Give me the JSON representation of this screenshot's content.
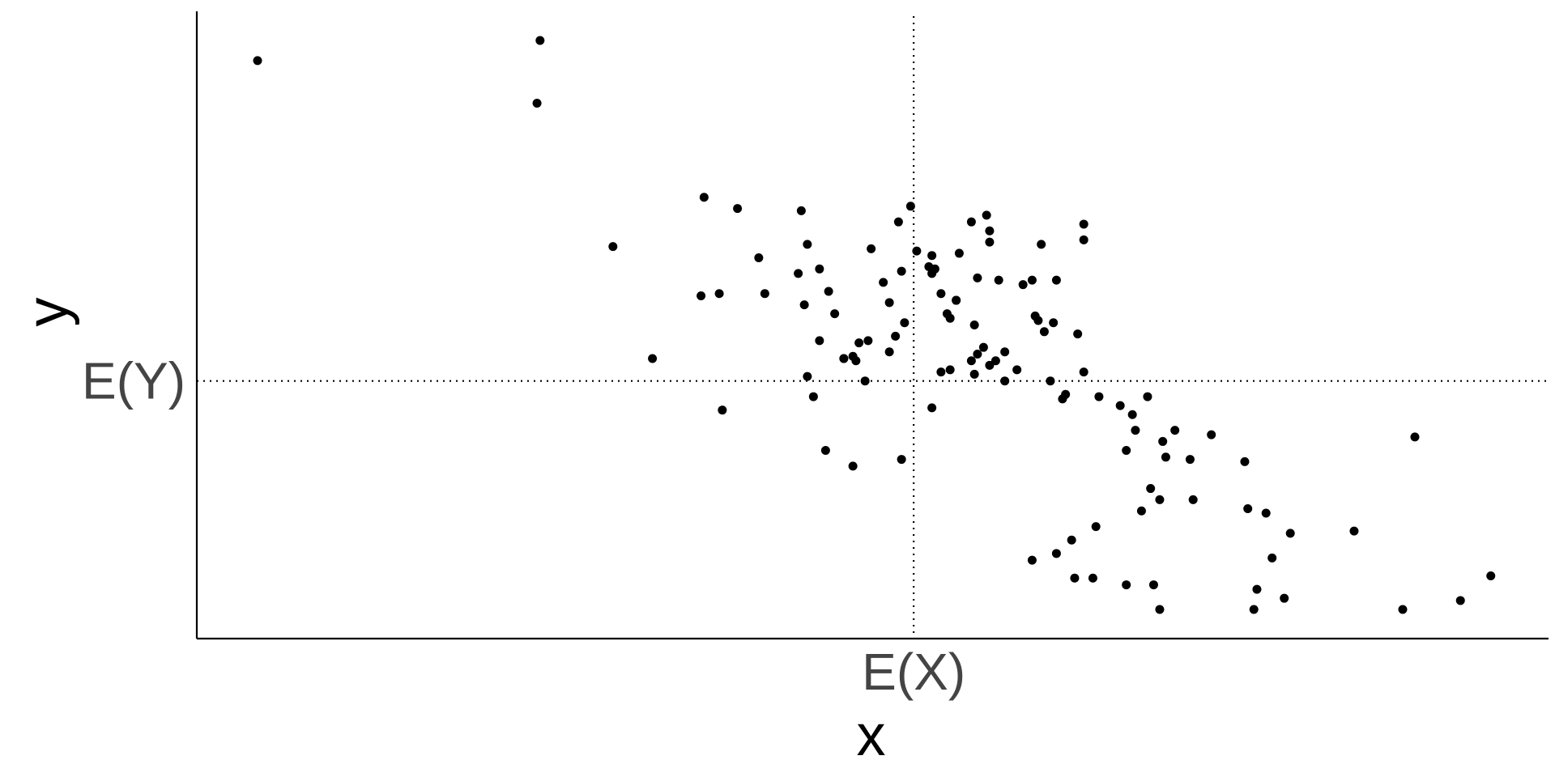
{
  "chart_data": {
    "type": "scatter",
    "xlabel": "x",
    "ylabel": "y",
    "x_ticks": [
      {
        "value": 0,
        "label": "E(X)"
      }
    ],
    "y_ticks": [
      {
        "value": 0,
        "label": "E(Y)"
      }
    ],
    "xlim": [
      -2.36,
      2.09
    ],
    "ylim": [
      -1.15,
      1.65
    ],
    "reference_lines": {
      "x": 0,
      "y": 0,
      "style": "dotted"
    },
    "grid": false,
    "points": [
      {
        "x": -2.16,
        "y": 1.43
      },
      {
        "x": -1.23,
        "y": 1.52
      },
      {
        "x": -1.24,
        "y": 1.24
      },
      {
        "x": -0.99,
        "y": 0.6
      },
      {
        "x": -0.7,
        "y": 0.38
      },
      {
        "x": -0.36,
        "y": 0.34
      },
      {
        "x": -0.64,
        "y": 0.39
      },
      {
        "x": -0.86,
        "y": 0.1
      },
      {
        "x": -0.58,
        "y": 0.77
      },
      {
        "x": -0.69,
        "y": 0.82
      },
      {
        "x": -0.51,
        "y": 0.55
      },
      {
        "x": -0.49,
        "y": 0.39
      },
      {
        "x": -0.37,
        "y": 0.76
      },
      {
        "x": -0.38,
        "y": 0.48
      },
      {
        "x": -0.35,
        "y": 0.61
      },
      {
        "x": -0.31,
        "y": 0.5
      },
      {
        "x": -0.28,
        "y": 0.4
      },
      {
        "x": -0.26,
        "y": 0.3
      },
      {
        "x": -0.23,
        "y": 0.1
      },
      {
        "x": -0.15,
        "y": 0.18
      },
      {
        "x": -0.08,
        "y": 0.13
      },
      {
        "x": -0.1,
        "y": 0.44
      },
      {
        "x": -0.04,
        "y": 0.49
      },
      {
        "x": -0.08,
        "y": 0.35
      },
      {
        "x": -0.05,
        "y": 0.71
      },
      {
        "x": -0.35,
        "y": 0.02
      },
      {
        "x": -0.16,
        "y": 0.0
      },
      {
        "x": -0.33,
        "y": -0.07
      },
      {
        "x": -0.2,
        "y": -0.38
      },
      {
        "x": -0.19,
        "y": 0.09
      },
      {
        "x": -0.2,
        "y": 0.11
      },
      {
        "x": -0.18,
        "y": 0.17
      },
      {
        "x": -0.31,
        "y": 0.18
      },
      {
        "x": -0.23,
        "y": 0.1
      },
      {
        "x": -0.14,
        "y": 0.59
      },
      {
        "x": -0.63,
        "y": -0.13
      },
      {
        "x": -0.29,
        "y": -0.31
      },
      {
        "x": -0.04,
        "y": -0.35
      },
      {
        "x": -0.03,
        "y": 0.26
      },
      {
        "x": -0.06,
        "y": 0.2
      },
      {
        "x": 0.06,
        "y": -0.12
      },
      {
        "x": 0.09,
        "y": 0.04
      },
      {
        "x": 0.01,
        "y": 0.58
      },
      {
        "x": 0.07,
        "y": 0.5
      },
      {
        "x": 0.12,
        "y": 0.28
      },
      {
        "x": 0.14,
        "y": 0.36
      },
      {
        "x": 0.2,
        "y": 0.03
      },
      {
        "x": 0.12,
        "y": 0.05
      },
      {
        "x": 0.25,
        "y": 0.07
      },
      {
        "x": 0.23,
        "y": 0.15
      },
      {
        "x": 0.21,
        "y": 0.12
      },
      {
        "x": 0.27,
        "y": 0.09
      },
      {
        "x": 0.19,
        "y": 0.09
      },
      {
        "x": 0.28,
        "y": 0.45
      },
      {
        "x": 0.3,
        "y": 0.0
      },
      {
        "x": 0.34,
        "y": 0.05
      },
      {
        "x": 0.3,
        "y": 0.13
      },
      {
        "x": 0.2,
        "y": 0.25
      },
      {
        "x": 0.14,
        "y": 0.36
      },
      {
        "x": 0.11,
        "y": 0.3
      },
      {
        "x": 0.09,
        "y": 0.39
      },
      {
        "x": 0.05,
        "y": 0.51
      },
      {
        "x": 0.15,
        "y": 0.57
      },
      {
        "x": 0.19,
        "y": 0.71
      },
      {
        "x": 0.24,
        "y": 0.74
      },
      {
        "x": 0.25,
        "y": 0.67
      },
      {
        "x": -0.01,
        "y": 0.78
      },
      {
        "x": 0.36,
        "y": 0.43
      },
      {
        "x": 0.4,
        "y": 0.29
      },
      {
        "x": 0.43,
        "y": 0.22
      },
      {
        "x": 0.47,
        "y": 0.45
      },
      {
        "x": 0.42,
        "y": 0.61
      },
      {
        "x": 0.25,
        "y": 0.62
      },
      {
        "x": 0.06,
        "y": 0.48
      },
      {
        "x": 0.21,
        "y": 0.46
      },
      {
        "x": 0.06,
        "y": 0.56
      },
      {
        "x": 0.41,
        "y": 0.27
      },
      {
        "x": 0.46,
        "y": 0.26
      },
      {
        "x": 0.56,
        "y": 0.63
      },
      {
        "x": 0.56,
        "y": 0.7
      },
      {
        "x": 0.54,
        "y": 0.21
      },
      {
        "x": 0.45,
        "y": 0.0
      },
      {
        "x": 0.5,
        "y": -0.06
      },
      {
        "x": 0.49,
        "y": -0.08
      },
      {
        "x": 0.61,
        "y": -0.07
      },
      {
        "x": 0.77,
        "y": -0.07
      },
      {
        "x": 0.72,
        "y": -0.15
      },
      {
        "x": 0.7,
        "y": -0.31
      },
      {
        "x": 0.78,
        "y": -0.48
      },
      {
        "x": 0.81,
        "y": -0.53
      },
      {
        "x": 0.75,
        "y": -0.58
      },
      {
        "x": 0.6,
        "y": -0.65
      },
      {
        "x": 0.52,
        "y": -0.71
      },
      {
        "x": 0.47,
        "y": -0.77
      },
      {
        "x": 0.39,
        "y": -0.8
      },
      {
        "x": 0.53,
        "y": -0.88
      },
      {
        "x": 0.59,
        "y": -0.88
      },
      {
        "x": 0.7,
        "y": -0.91
      },
      {
        "x": 0.79,
        "y": -0.91
      },
      {
        "x": 0.81,
        "y": -1.02
      },
      {
        "x": 0.92,
        "y": -0.53
      },
      {
        "x": 0.98,
        "y": -0.24
      },
      {
        "x": 0.82,
        "y": -0.27
      },
      {
        "x": 0.91,
        "y": -0.35
      },
      {
        "x": 0.83,
        "y": -0.34
      },
      {
        "x": 0.86,
        "y": -0.22
      },
      {
        "x": 0.73,
        "y": -0.22
      },
      {
        "x": 0.68,
        "y": -0.11
      },
      {
        "x": 1.09,
        "y": -0.36
      },
      {
        "x": 1.1,
        "y": -0.57
      },
      {
        "x": 1.16,
        "y": -0.59
      },
      {
        "x": 1.24,
        "y": -0.68
      },
      {
        "x": 1.45,
        "y": -0.67
      },
      {
        "x": 1.65,
        "y": -0.25
      },
      {
        "x": 1.18,
        "y": -0.79
      },
      {
        "x": 1.13,
        "y": -0.93
      },
      {
        "x": 1.22,
        "y": -0.97
      },
      {
        "x": 1.12,
        "y": -1.02
      },
      {
        "x": 1.61,
        "y": -1.02
      },
      {
        "x": 1.8,
        "y": -0.98
      },
      {
        "x": 1.9,
        "y": -0.87
      },
      {
        "x": 0.56,
        "y": 0.04
      },
      {
        "x": 0.39,
        "y": 0.45
      }
    ]
  }
}
